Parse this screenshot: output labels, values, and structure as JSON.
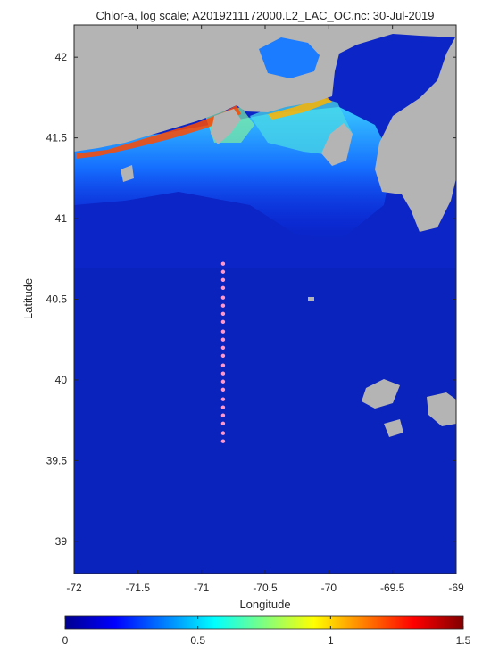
{
  "chart_data": {
    "type": "heatmap",
    "title": "Chlor-a, log scale; A2019211172000.L2_LAC_OC.nc: 30-Jul-2019",
    "xlabel": "Longitude",
    "ylabel": "Latitude",
    "xlim": [
      -72,
      -69
    ],
    "ylim": [
      38.8,
      42.2
    ],
    "xticks": [
      -72,
      -71.5,
      -71,
      -70.5,
      -70,
      -69.5,
      -69
    ],
    "xtick_labels": [
      "-72",
      "-71.5",
      "-71",
      "-70.5",
      "-70",
      "-69.5",
      "-69"
    ],
    "yticks": [
      39,
      39.5,
      40,
      40.5,
      41,
      41.5,
      42
    ],
    "ytick_labels": [
      "39",
      "39.5",
      "40",
      "40.5",
      "41",
      "41.5",
      "42"
    ],
    "colorbar": {
      "colormap": "jet",
      "range": [
        0,
        1.5
      ],
      "ticks": [
        0,
        0.5,
        1,
        1.5
      ],
      "tick_labels": [
        "0",
        "0.5",
        "1",
        "1.5"
      ],
      "orientation": "horizontal",
      "location": "bottom"
    },
    "station_points": {
      "color": "#ff99cc",
      "points": [
        {
          "lon": -70.83,
          "lat": 40.72
        },
        {
          "lon": -70.83,
          "lat": 40.67
        },
        {
          "lon": -70.83,
          "lat": 40.62
        },
        {
          "lon": -70.83,
          "lat": 40.57
        },
        {
          "lon": -70.83,
          "lat": 40.51
        },
        {
          "lon": -70.83,
          "lat": 40.46
        },
        {
          "lon": -70.83,
          "lat": 40.41
        },
        {
          "lon": -70.83,
          "lat": 40.36
        },
        {
          "lon": -70.83,
          "lat": 40.3
        },
        {
          "lon": -70.83,
          "lat": 40.25
        },
        {
          "lon": -70.83,
          "lat": 40.2
        },
        {
          "lon": -70.83,
          "lat": 40.15
        },
        {
          "lon": -70.83,
          "lat": 40.09
        },
        {
          "lon": -70.83,
          "lat": 40.04
        },
        {
          "lon": -70.83,
          "lat": 39.99
        },
        {
          "lon": -70.83,
          "lat": 39.94
        },
        {
          "lon": -70.83,
          "lat": 39.88
        },
        {
          "lon": -70.83,
          "lat": 39.83
        },
        {
          "lon": -70.83,
          "lat": 39.78
        },
        {
          "lon": -70.83,
          "lat": 39.73
        },
        {
          "lon": -70.83,
          "lat": 39.67
        },
        {
          "lon": -70.83,
          "lat": 39.62
        }
      ]
    },
    "land_color": "#b4b4b4",
    "grid": false
  }
}
